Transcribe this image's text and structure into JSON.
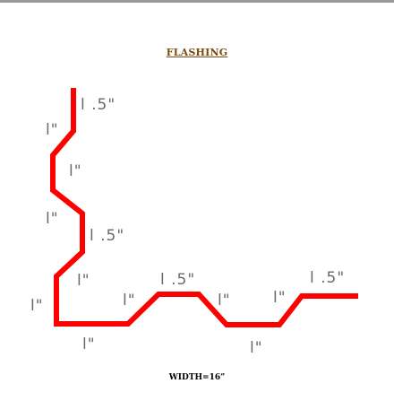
{
  "diagram": {
    "title": "FLASHING",
    "title_color": "#7a4a10",
    "width_label": "WIDTH=16”",
    "profile_color": "#ff0000",
    "dimension_color": "#6a6a6a",
    "dimensions": [
      "l .5\"",
      "l\"",
      "l\"",
      "l\"",
      "l .5\"",
      "l\"",
      "l\"",
      "l\"",
      "l\"",
      "l .5\"",
      "l\"",
      "l\"",
      "l\"",
      "l .5\""
    ]
  }
}
